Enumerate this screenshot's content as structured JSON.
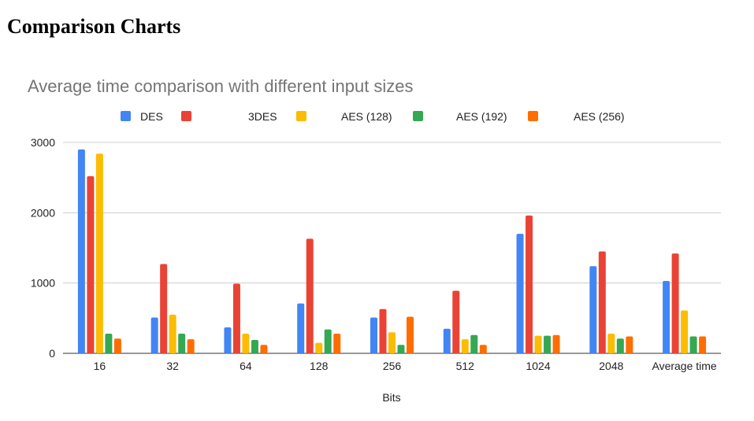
{
  "page": {
    "heading": "Comparison Charts"
  },
  "chart_data": {
    "type": "bar",
    "title": "Average time comparison with different input sizes",
    "xlabel": "Bits",
    "ylabel": "",
    "categories": [
      "16",
      "32",
      "64",
      "128",
      "256",
      "512",
      "1024",
      "2048",
      "Average time"
    ],
    "series": [
      {
        "name": "DES",
        "color": "#4285f4",
        "values": [
          2900,
          510,
          370,
          710,
          510,
          350,
          1700,
          1240,
          1030
        ]
      },
      {
        "name": "3DES",
        "color": "#ea4335",
        "values": [
          2520,
          1270,
          990,
          1630,
          630,
          890,
          1960,
          1450,
          1420
        ]
      },
      {
        "name": "AES (128)",
        "color": "#fbbc04",
        "values": [
          2840,
          550,
          280,
          150,
          300,
          200,
          250,
          280,
          610
        ]
      },
      {
        "name": "AES (192)",
        "color": "#34a853",
        "values": [
          280,
          280,
          190,
          340,
          120,
          260,
          250,
          210,
          240
        ]
      },
      {
        "name": "AES (256)",
        "color": "#ff6d01",
        "values": [
          210,
          200,
          120,
          280,
          520,
          120,
          260,
          240,
          240
        ]
      }
    ],
    "ylim": [
      0,
      3000
    ],
    "yticks": [
      0,
      1000,
      2000,
      3000
    ],
    "grid": true,
    "legend_position": "top"
  }
}
